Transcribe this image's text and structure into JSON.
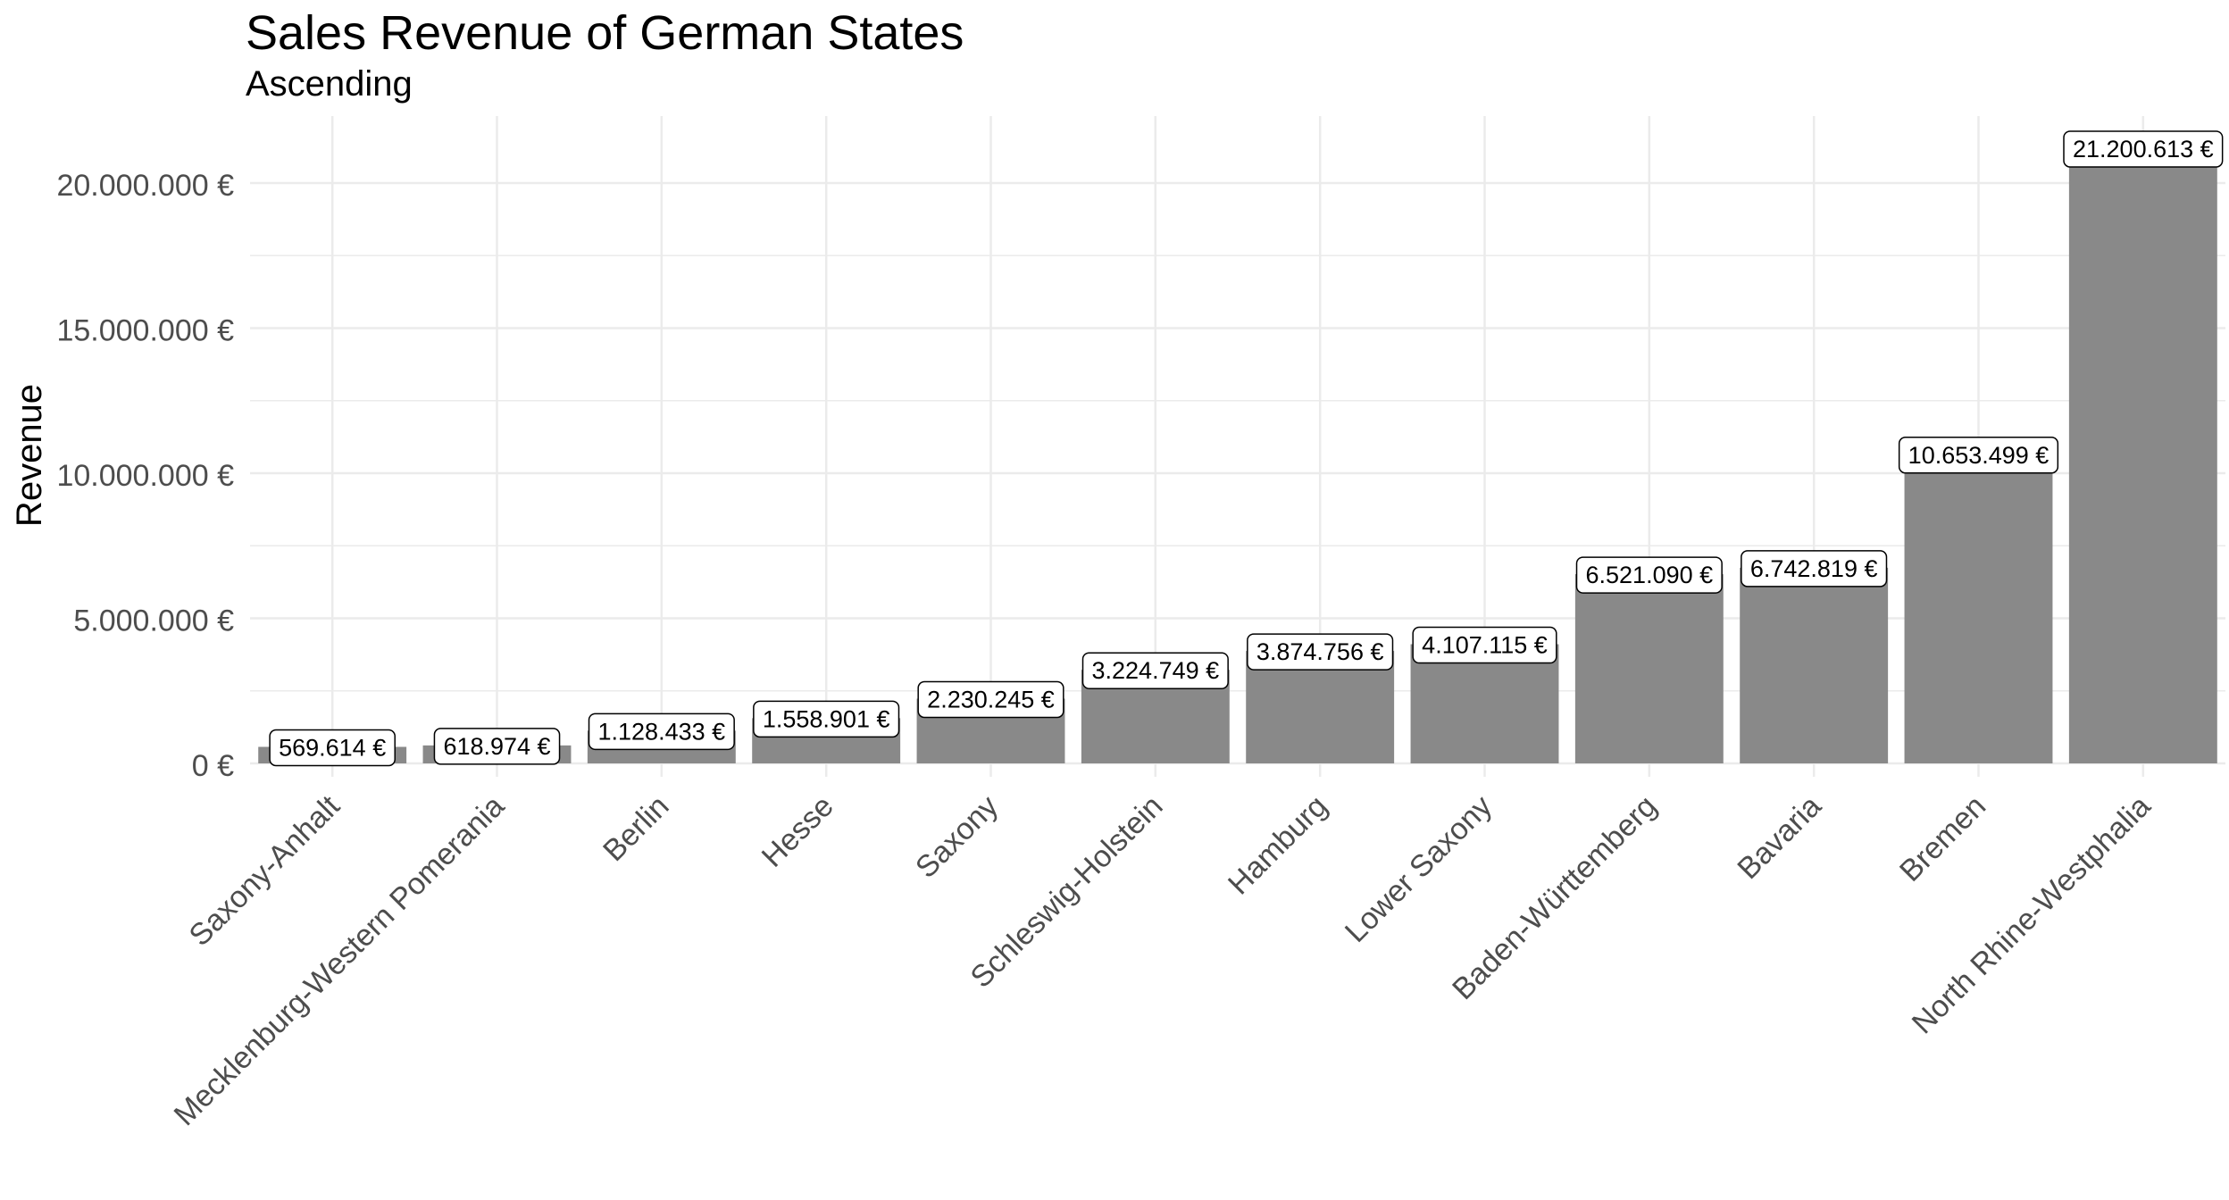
{
  "chart_data": {
    "type": "bar",
    "title": "Sales Revenue of German States",
    "subtitle": "Ascending",
    "xlabel": "",
    "ylabel": "Revenue",
    "ylim": [
      0,
      22200000
    ],
    "y_ticks": [
      0,
      5000000,
      10000000,
      15000000,
      20000000
    ],
    "y_tick_labels": [
      "0 €",
      "5.000.000 €",
      "10.000.000 €",
      "15.000.000 €",
      "20.000.000 €"
    ],
    "categories": [
      "Saxony-Anhalt",
      "Mecklenburg-Western Pomerania",
      "Berlin",
      "Hesse",
      "Saxony",
      "Schleswig-Holstein",
      "Hamburg",
      "Lower Saxony",
      "Baden-Württemberg",
      "Bavaria",
      "Bremen",
      "North Rhine-Westphalia"
    ],
    "values": [
      569614,
      618974,
      1128433,
      1558901,
      2230245,
      3224749,
      3874756,
      4107115,
      6521090,
      6742819,
      10653499,
      21200613
    ],
    "value_labels": [
      "569.614 €",
      "618.974 €",
      "1.128.433 €",
      "1.558.901 €",
      "2.230.245 €",
      "3.224.749 €",
      "3.874.756 €",
      "4.107.115 €",
      "6.521.090 €",
      "6.742.819 €",
      "10.653.499 €",
      "21.200.613 €"
    ],
    "grid": true,
    "legend": "none",
    "bar_color": "#898989",
    "gridline_color": "#ebebeb"
  }
}
